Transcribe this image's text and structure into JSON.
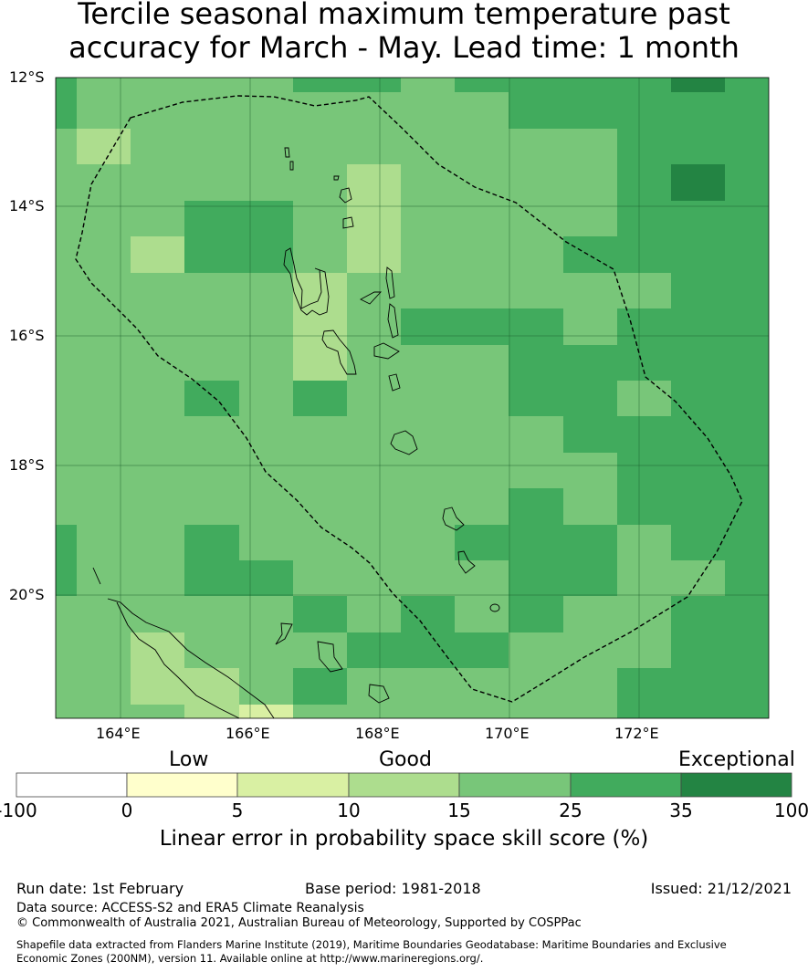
{
  "title": {
    "line1": "Tercile seasonal maximum temperature past",
    "line2": "accuracy for March - May. Lead time: 1 month"
  },
  "map": {
    "lat_labels": [
      "12°S",
      "14°S",
      "16°S",
      "18°S",
      "20°S"
    ],
    "lon_labels": [
      "164°E",
      "166°E",
      "168°E",
      "170°E",
      "172°E"
    ],
    "lon_range": [
      163,
      174
    ],
    "lat_range": [
      -12,
      -22
    ],
    "grid_note": "class index per cell: 0=5-10, 1=10-15, 2=15-25, 3=25-35, 4=35-100",
    "grid": [
      [
        3,
        2,
        2,
        2,
        2,
        3,
        3,
        2,
        3,
        3,
        3,
        3,
        4,
        3
      ],
      [
        3,
        2,
        2,
        2,
        2,
        2,
        2,
        2,
        2,
        3,
        3,
        3,
        3,
        3
      ],
      [
        2,
        1,
        2,
        2,
        2,
        2,
        2,
        2,
        2,
        2,
        2,
        3,
        3,
        3
      ],
      [
        2,
        2,
        2,
        2,
        2,
        2,
        1,
        2,
        2,
        2,
        2,
        3,
        4,
        3
      ],
      [
        2,
        2,
        2,
        3,
        3,
        2,
        1,
        2,
        2,
        2,
        2,
        3,
        3,
        3
      ],
      [
        2,
        2,
        1,
        3,
        3,
        2,
        1,
        2,
        2,
        2,
        3,
        3,
        3,
        3
      ],
      [
        2,
        2,
        2,
        2,
        2,
        1,
        2,
        2,
        2,
        2,
        2,
        2,
        3,
        3
      ],
      [
        2,
        2,
        2,
        2,
        2,
        1,
        2,
        3,
        3,
        3,
        2,
        3,
        3,
        3
      ],
      [
        2,
        2,
        2,
        2,
        2,
        1,
        2,
        2,
        2,
        3,
        3,
        3,
        3,
        3
      ],
      [
        2,
        2,
        2,
        3,
        2,
        3,
        2,
        2,
        2,
        3,
        3,
        2,
        3,
        3
      ],
      [
        2,
        2,
        2,
        2,
        2,
        2,
        2,
        2,
        2,
        2,
        3,
        3,
        3,
        3
      ],
      [
        2,
        2,
        2,
        2,
        2,
        2,
        2,
        2,
        2,
        2,
        2,
        3,
        3,
        3
      ],
      [
        2,
        2,
        2,
        2,
        2,
        2,
        2,
        2,
        2,
        3,
        2,
        3,
        3,
        3
      ],
      [
        3,
        2,
        2,
        3,
        2,
        2,
        2,
        2,
        3,
        3,
        3,
        2,
        3,
        3
      ],
      [
        3,
        2,
        2,
        3,
        3,
        2,
        2,
        2,
        2,
        3,
        3,
        2,
        2,
        3
      ],
      [
        2,
        2,
        2,
        2,
        2,
        3,
        2,
        3,
        2,
        3,
        2,
        2,
        3,
        3
      ],
      [
        2,
        2,
        1,
        2,
        2,
        2,
        3,
        3,
        3,
        2,
        2,
        2,
        3,
        3
      ],
      [
        2,
        2,
        1,
        1,
        2,
        3,
        2,
        2,
        2,
        2,
        2,
        3,
        3,
        3
      ],
      [
        2,
        2,
        2,
        1,
        0,
        2,
        2,
        2,
        2,
        2,
        2,
        3,
        3,
        3
      ]
    ],
    "class_colors": [
      "#d9f0a3",
      "#addd8e",
      "#78c679",
      "#41ab5d",
      "#238443"
    ]
  },
  "colorbar": {
    "category_labels": [
      "Low",
      "Good",
      "Exceptional"
    ],
    "ticks": [
      "-100",
      "0",
      "5",
      "10",
      "15",
      "25",
      "35",
      "100"
    ],
    "colors": [
      "#ffffff",
      "#ffffcc",
      "#d9f0a3",
      "#addd8e",
      "#78c679",
      "#41ab5d",
      "#238443"
    ],
    "label": "Linear error in probability space skill score (%)"
  },
  "footer": {
    "run_date": "Run date: 1st February",
    "base_period": "Base period: 1981-2018",
    "issued": "Issued: 21/12/2021",
    "data_source": "Data source: ACCESS-S2 and ERA5 Climate Reanalysis",
    "copyright": "© Commonwealth of Australia 2021, Australian Bureau of Meteorology, Supported by COSPPac",
    "shapefile_line1": "Shapefile data extracted from Flanders Marine Institute (2019), Maritime Boundaries Geodatabase: Maritime Boundaries and Exclusive",
    "shapefile_line2": "Economic Zones (200NM), version 11. Available online at http://www.marineregions.org/."
  }
}
